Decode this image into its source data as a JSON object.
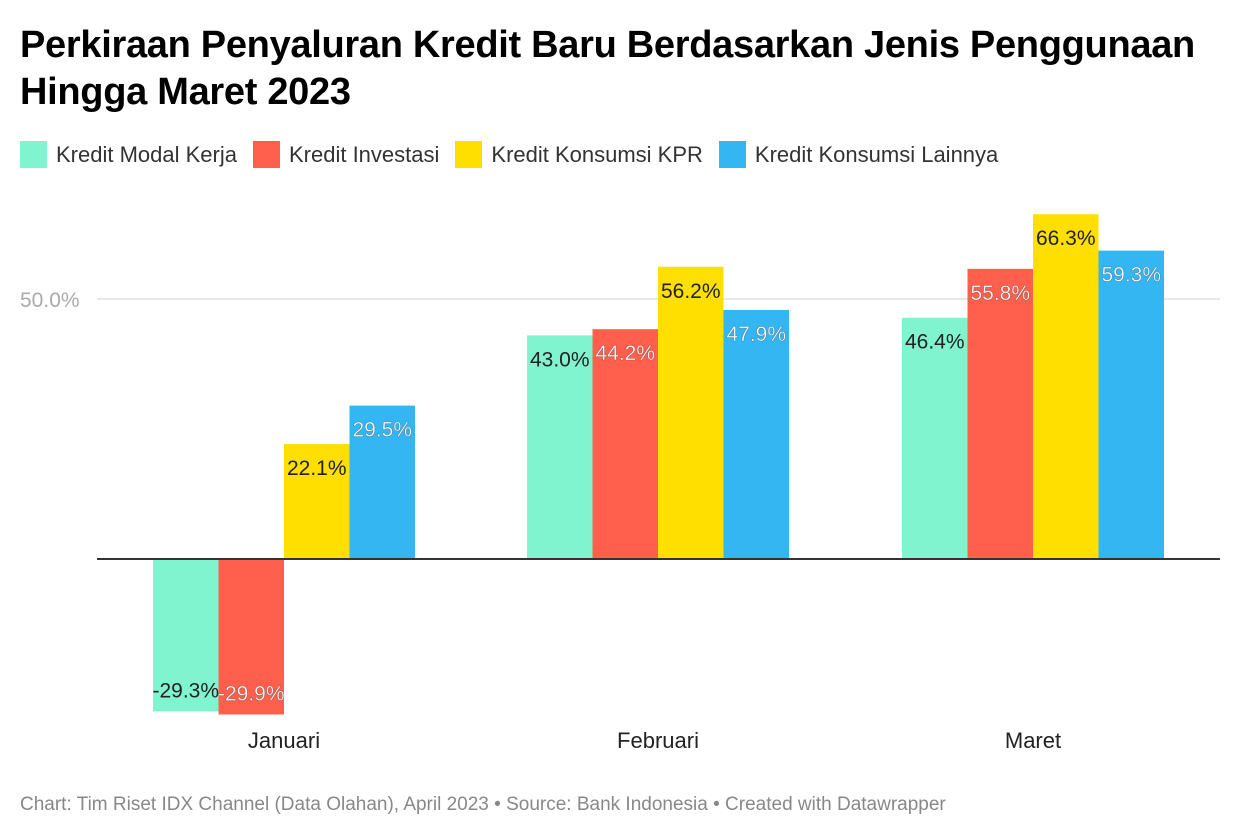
{
  "title": "Perkiraan Penyaluran Kredit Baru Berdasarkan Jenis Penggunaan Hingga Maret 2023",
  "colors": {
    "Kredit Modal Kerja": "#80F4CE",
    "Kredit Investasi": "#FF5F4C",
    "Kredit Konsumsi KPR": "#FFDF00",
    "Kredit Konsumsi Lainnya": "#33B6F2",
    "gridline": "#e0e0e0",
    "axis": "#333333",
    "tick_label": "#aaaaaa"
  },
  "footer": "Chart: Tim Riset IDX Channel (Data Olahan), April 2023 • Source: Bank Indonesia • Created with Datawrapper",
  "chart_data": {
    "type": "bar",
    "title": "Perkiraan Penyaluran Kredit Baru Berdasarkan Jenis Penggunaan Hingga Maret 2023",
    "categories": [
      "Januari",
      "Februari",
      "Maret"
    ],
    "series": [
      {
        "name": "Kredit Modal Kerja",
        "values": [
          -29.3,
          43.0,
          46.4
        ],
        "labels": [
          "-29.3%",
          "43.0%",
          "46.4%"
        ]
      },
      {
        "name": "Kredit Investasi",
        "values": [
          -29.9,
          44.2,
          55.8
        ],
        "labels": [
          "-29.9%",
          "44.2%",
          "55.8%"
        ]
      },
      {
        "name": "Kredit Konsumsi KPR",
        "values": [
          22.1,
          56.2,
          66.3
        ],
        "labels": [
          "22.1%",
          "56.2%",
          "66.3%"
        ]
      },
      {
        "name": "Kredit Konsumsi Lainnya",
        "values": [
          29.5,
          47.9,
          59.3
        ],
        "labels": [
          "29.5%",
          "47.9%",
          "59.3%"
        ]
      }
    ],
    "y_ticks": [
      {
        "value": 50,
        "label": "50.0%"
      }
    ],
    "ylim": [
      -30,
      66.3
    ],
    "xlabel": "",
    "ylabel": "",
    "grid": true,
    "legend_position": "top-left"
  }
}
